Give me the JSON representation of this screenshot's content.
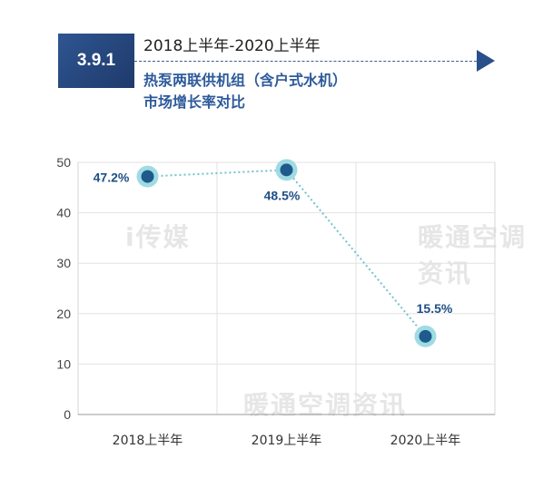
{
  "header": {
    "badge": "3.9.1",
    "line1": "2018上半年-2020上半年",
    "line2": "热泵两联供机组（含户式水机）",
    "line3": "市场增长率对比"
  },
  "watermarks": [
    "i传媒",
    "暖通空调资讯",
    "暖通空调资讯"
  ],
  "chart_data": {
    "type": "line",
    "categories": [
      "2018上半年",
      "2019上半年",
      "2020上半年"
    ],
    "values": [
      47.2,
      48.5,
      15.5
    ],
    "data_labels": [
      "47.2%",
      "48.5%",
      "15.5%"
    ],
    "ylim": [
      0,
      50
    ],
    "yticks": [
      "0",
      "10",
      "20",
      "30",
      "40",
      "50"
    ],
    "grid": true,
    "colors": {
      "line": "#6fc4cf",
      "point": "#1e5a8c",
      "ring": "#9fdbe3",
      "label": "#1e4f86"
    }
  }
}
